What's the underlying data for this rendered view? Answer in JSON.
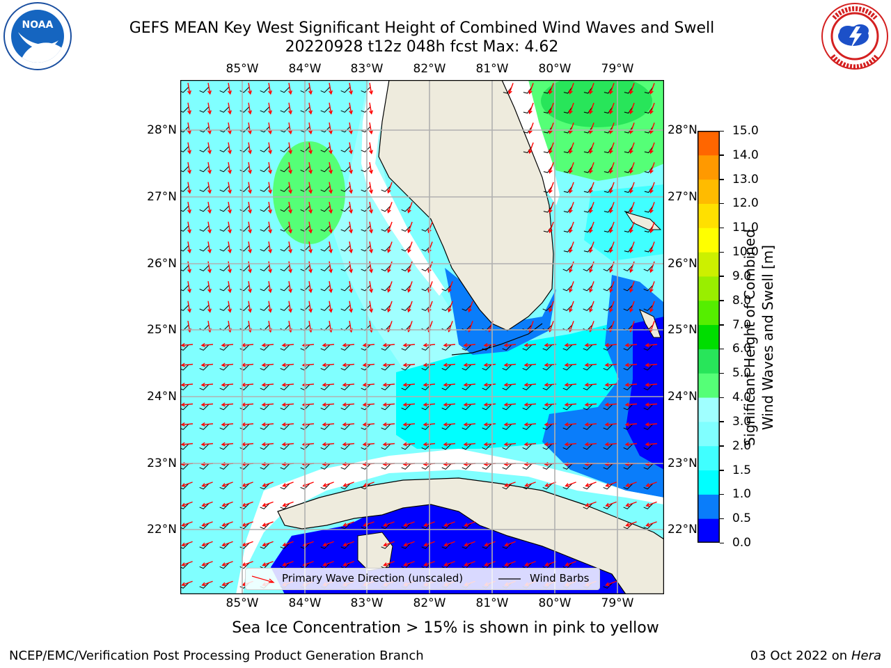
{
  "title_line1": "GEFS MEAN Key West Significant Height of Combined Wind Waves and Swell",
  "title_line2": "20220928 t12z 048h fcst   Max: 4.62",
  "logos": {
    "left": {
      "icon": "noaa-logo-icon",
      "text": "NOAA",
      "ring_text": "NATIONAL OCEANIC AND ATMOSPHERIC ADMINISTRATION · U.S. DEPARTMENT OF COMMERCE"
    },
    "right": {
      "icon": "nws-logo-icon",
      "ring_text": "NATIONAL WEATHER SERVICE"
    }
  },
  "map": {
    "lon_labels": [
      "85°W",
      "84°W",
      "83°W",
      "82°W",
      "81°W",
      "80°W",
      "79°W"
    ],
    "lat_labels": [
      "28°N",
      "27°N",
      "26°N",
      "25°N",
      "24°N",
      "23°N",
      "22°N"
    ],
    "lon_range": [
      -86,
      -78.4
    ],
    "lat_range": [
      21.1,
      28.8
    ],
    "colors": {
      "land": "#eeebdd",
      "ice_free_gap": "#ffffff",
      "wave_arrows": "#ff0000",
      "wind_barbs": "#000000",
      "gridlines": "#b0b0b0"
    }
  },
  "legend": {
    "items": [
      {
        "label": "Primary Wave Direction (unscaled)",
        "color": "#ff0000"
      },
      {
        "label": "Wind Barbs",
        "color": "#000000"
      }
    ]
  },
  "colorbar": {
    "label_line1": "Significant Height of Combined",
    "label_line2": "Wind Waves and Swell [m]",
    "tick_labels": [
      "15.0",
      "14.0",
      "13.0",
      "12.0",
      "11.0",
      "10.0",
      "9.0",
      "8.0",
      "7.0",
      "6.0",
      "5.0",
      "4.0",
      "3.0",
      "2.0",
      "1.5",
      "1.0",
      "0.5",
      "0.0"
    ],
    "colors_bottom_to_top": [
      "#0000ff",
      "#0a7dfa",
      "#00ffff",
      "#40ffff",
      "#80ffff",
      "#a0ffff",
      "#55ff77",
      "#28e55a",
      "#00dd00",
      "#55ee00",
      "#99ee00",
      "#ccf000",
      "#ffff00",
      "#ffe000",
      "#ffbb00",
      "#ff9900",
      "#ff6600",
      "#ff3300",
      "#ff0000"
    ]
  },
  "notes": {
    "ice": "Sea Ice Concentration > 15% is shown in pink to yellow",
    "credit": "NCEP/EMC/Verification Post Processing Product Generation Branch",
    "date_prefix": "03 Oct 2022 on",
    "host": "Hera"
  }
}
